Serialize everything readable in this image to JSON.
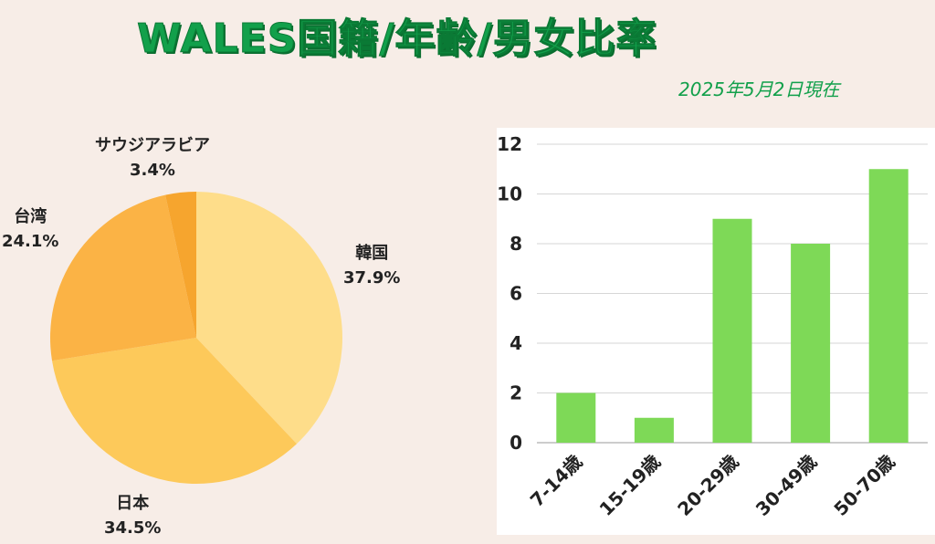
{
  "header": {
    "title": "WALES国籍/年齢/男女比率",
    "date_note": "2025年5月2日現在"
  },
  "chart_data": [
    {
      "type": "pie",
      "slices": [
        {
          "label": "韓国",
          "value": 37.9,
          "display": "37.9%",
          "color": "#fedd8a"
        },
        {
          "label": "日本",
          "value": 34.5,
          "display": "34.5%",
          "color": "#fdc95a"
        },
        {
          "label": "台湾",
          "value": 24.1,
          "display": "24.1%",
          "color": "#fbb345"
        },
        {
          "label": "サウジアラビア",
          "value": 3.4,
          "display": "3.4%",
          "color": "#f6a52e"
        }
      ]
    },
    {
      "type": "bar",
      "categories": [
        "7-14歳",
        "15-19歳",
        "20-29歳",
        "30-49歳",
        "50-70歳"
      ],
      "values": [
        2,
        1,
        9,
        8,
        11
      ],
      "ylim": [
        0,
        12
      ],
      "yticks": [
        0,
        2,
        4,
        6,
        8,
        10,
        12
      ],
      "bar_color": "#7ed957",
      "grid": true
    }
  ]
}
